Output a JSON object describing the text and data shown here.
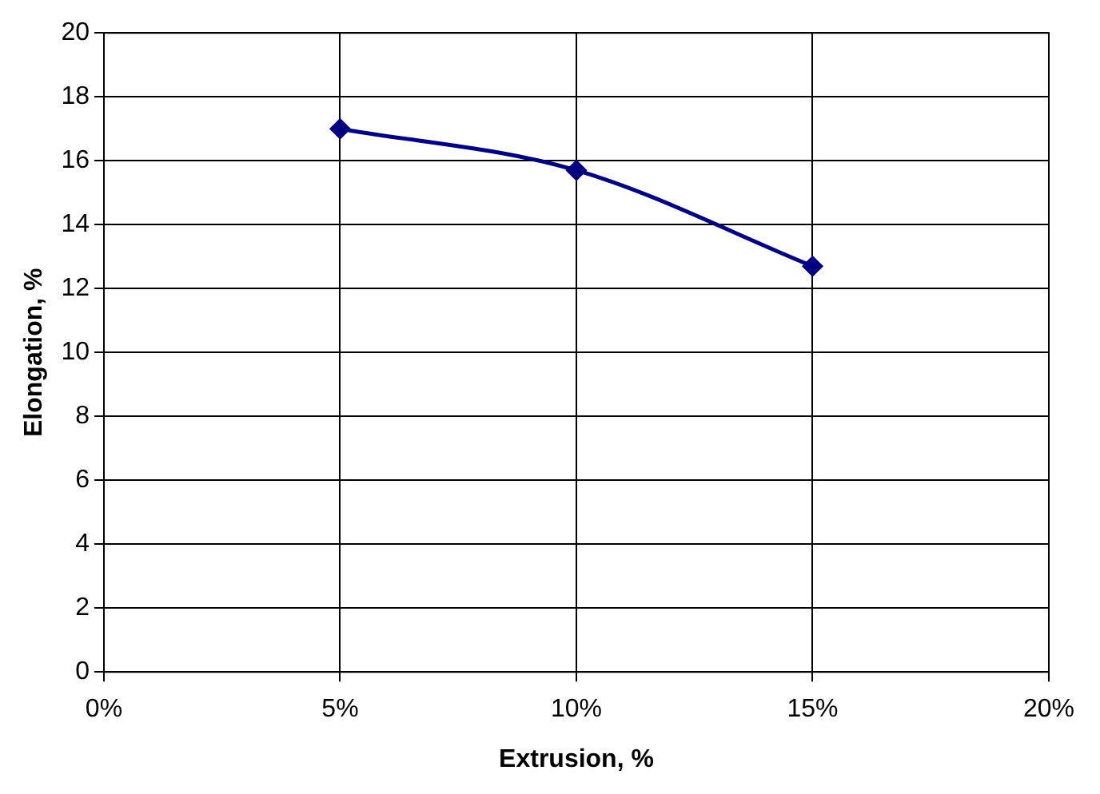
{
  "chart_data": {
    "type": "line",
    "xlabel": "Extrusion, %",
    "ylabel": "Elongation, %",
    "x": [
      5,
      10,
      15
    ],
    "series": [
      {
        "color": "#000080",
        "values": [
          17.0,
          15.7,
          12.7
        ]
      }
    ],
    "xlim": [
      0,
      20
    ],
    "xticks": [
      {
        "value": 0,
        "label": "0%"
      },
      {
        "value": 5,
        "label": "5%"
      },
      {
        "value": 10,
        "label": "10%"
      },
      {
        "value": 15,
        "label": "15%"
      },
      {
        "value": 20,
        "label": "20%"
      }
    ],
    "ylim": [
      0,
      20
    ],
    "yticks": [
      0,
      2,
      4,
      6,
      8,
      10,
      12,
      14,
      16,
      18,
      20
    ],
    "grid": true,
    "legend": false,
    "marker": "diamond",
    "line_style": "solid"
  }
}
